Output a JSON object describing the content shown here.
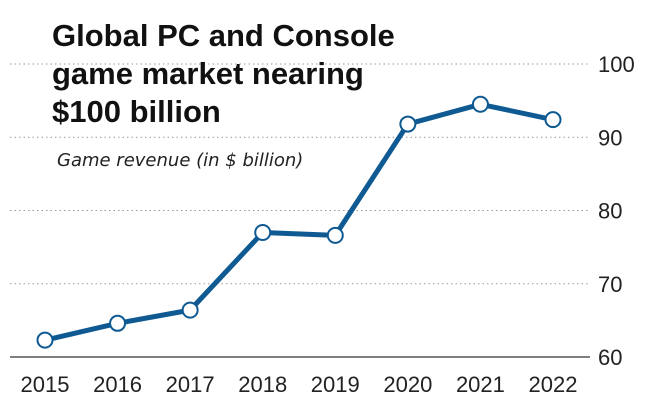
{
  "chart_data": {
    "type": "line",
    "title_lines": [
      "Global PC and Console",
      "game market nearing",
      "$100 billion"
    ],
    "subtitle": "Game revenue (in $ billion)",
    "categories": [
      "2015",
      "2016",
      "2017",
      "2018",
      "2019",
      "2020",
      "2021",
      "2022"
    ],
    "series": [
      {
        "values": [
          62.3,
          64.6,
          66.4,
          77.0,
          76.6,
          91.8,
          94.5,
          92.4
        ]
      }
    ],
    "ylim": [
      60,
      100
    ],
    "yticks": [
      60,
      70,
      80,
      90,
      100
    ],
    "grid": true,
    "colors": {
      "line": "#0f5a92",
      "marker_fill": "#ffffff"
    }
  }
}
